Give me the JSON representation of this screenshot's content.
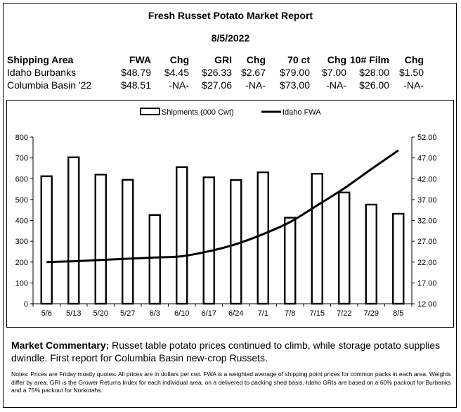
{
  "report": {
    "title": "Fresh Russet Potato Market Report",
    "date": "8/5/2022"
  },
  "price_table": {
    "headers": [
      "Shipping Area",
      "FWA",
      "Chg",
      "GRI",
      "Chg",
      "70 ct",
      "Chg",
      "10# Film",
      "Chg"
    ],
    "rows": [
      [
        "Idaho Burbanks",
        "$48.79",
        "$4.45",
        "$26.33",
        "$2.67",
        "$79.00",
        "$7.00",
        "$28.00",
        "$1.50"
      ],
      [
        "Columbia Basin '22",
        "$48.51",
        "-NA-",
        "$27.06",
        "-NA-",
        "$73.00",
        "-NA-",
        "$26.00",
        "-NA-"
      ]
    ]
  },
  "chart_data": {
    "type": "bar",
    "title": "",
    "legend_position": "top-center",
    "categories": [
      "5/6",
      "5/13",
      "5/20",
      "5/27",
      "6/3",
      "6/10",
      "6/17",
      "6/24",
      "7/1",
      "7/8",
      "7/15",
      "7/22",
      "7/29",
      "8/5"
    ],
    "series": [
      {
        "name": "Shipments (000 Cwt)",
        "type": "bar",
        "axis": "left",
        "values": [
          612,
          703,
          620,
          595,
          426,
          656,
          607,
          594,
          631,
          413,
          624,
          534,
          476,
          432
        ]
      },
      {
        "name": "Idaho FWA",
        "type": "line",
        "axis": "right",
        "values": [
          22.0,
          22.2,
          22.5,
          22.8,
          23.1,
          23.4,
          24.6,
          26.3,
          28.7,
          31.6,
          35.6,
          39.7,
          44.3,
          48.79
        ]
      }
    ],
    "ylim_left": [
      0,
      800
    ],
    "yticks_left": [
      "0",
      "100",
      "200",
      "300",
      "400",
      "500",
      "600",
      "700",
      "800"
    ],
    "ylim_right": [
      12,
      52
    ],
    "yticks_right": [
      "12.00",
      "17.00",
      "22.00",
      "27.00",
      "32.00",
      "37.00",
      "42.00",
      "47.00",
      "52.00"
    ],
    "grid": false
  },
  "commentary": {
    "label": "Market Commentary:",
    "text": "Russet table potato prices continued to climb, while storage potato supplies dwindle. First report for Columbia Basin new-crop Russets."
  },
  "notes": "Notes: Prices are Friday mostly quotes. All prices are in dollars per cwt. FWA is a weighted average of shipping point prices for  common packs in each area. Weights differ by area. GRI is the Grower Returns Index for each individual area, on a delivered to packing shed basis. Idaho GRIs are based on a 60% packout for Burbanks and a 75% packout for Norkotahs."
}
